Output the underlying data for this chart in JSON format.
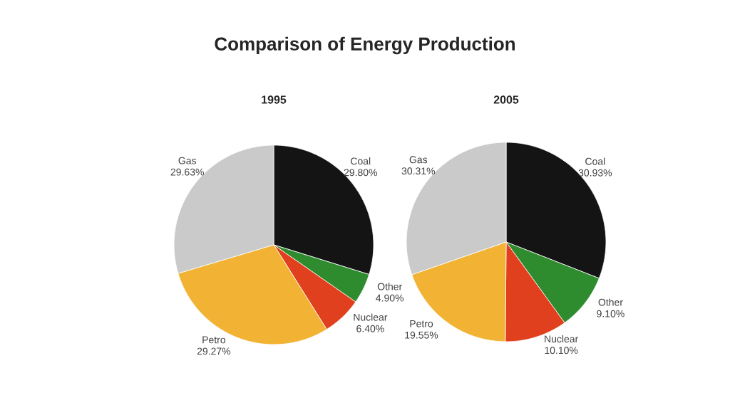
{
  "chart_data": [
    {
      "type": "pie",
      "title": "Comparison of Energy Production",
      "subtitle": "1995",
      "categories": [
        "Coal",
        "Other",
        "Nuclear",
        "Petro",
        "Gas"
      ],
      "values": [
        29.8,
        4.9,
        6.4,
        29.27,
        29.63
      ],
      "value_labels": [
        "29.80%",
        "4.90%",
        "6.40%",
        "29.27%",
        "29.63%"
      ],
      "colors": [
        "#141414",
        "#2e8b2e",
        "#e0401e",
        "#f2b233",
        "#cacaca"
      ]
    },
    {
      "type": "pie",
      "subtitle": "2005",
      "categories": [
        "Coal",
        "Other",
        "Nuclear",
        "Petro",
        "Gas"
      ],
      "values": [
        30.93,
        9.1,
        10.1,
        19.55,
        30.31
      ],
      "value_labels": [
        "30.93%",
        "9.10%",
        "10.10%",
        "19.55%",
        "30.31%"
      ],
      "colors": [
        "#141414",
        "#2e8b2e",
        "#e0401e",
        "#f2b233",
        "#cacaca"
      ]
    }
  ]
}
